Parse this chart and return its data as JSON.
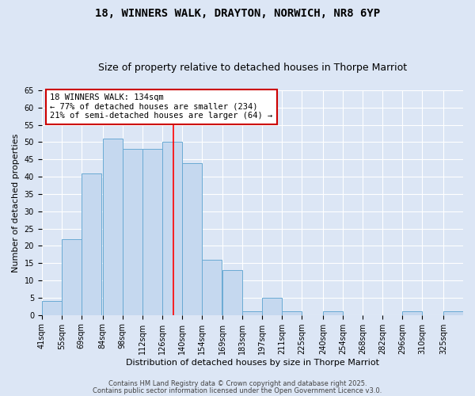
{
  "title": "18, WINNERS WALK, DRAYTON, NORWICH, NR8 6YP",
  "subtitle": "Size of property relative to detached houses in Thorpe Marriot",
  "xlabel": "Distribution of detached houses by size in Thorpe Marriot",
  "ylabel": "Number of detached properties",
  "bin_labels": [
    "41sqm",
    "55sqm",
    "69sqm",
    "84sqm",
    "98sqm",
    "112sqm",
    "126sqm",
    "140sqm",
    "154sqm",
    "169sqm",
    "183sqm",
    "197sqm",
    "211sqm",
    "225sqm",
    "240sqm",
    "254sqm",
    "268sqm",
    "282sqm",
    "296sqm",
    "310sqm",
    "325sqm"
  ],
  "bin_edges": [
    41,
    55,
    69,
    84,
    98,
    112,
    126,
    140,
    154,
    169,
    183,
    197,
    211,
    225,
    240,
    254,
    268,
    282,
    296,
    310,
    325
  ],
  "bin_width": 14,
  "bar_heights": [
    4,
    22,
    41,
    51,
    48,
    48,
    50,
    44,
    16,
    13,
    1,
    5,
    1,
    0,
    1,
    0,
    0,
    0,
    1,
    0,
    1
  ],
  "bar_color": "#c5d8ef",
  "bar_edge_color": "#6aaad4",
  "red_line_x": 134,
  "ylim": [
    0,
    65
  ],
  "yticks": [
    0,
    5,
    10,
    15,
    20,
    25,
    30,
    35,
    40,
    45,
    50,
    55,
    60,
    65
  ],
  "annotation_text": "18 WINNERS WALK: 134sqm\n← 77% of detached houses are smaller (234)\n21% of semi-detached houses are larger (64) →",
  "annotation_box_color": "#ffffff",
  "annotation_box_edge": "#cc0000",
  "footer_line1": "Contains HM Land Registry data © Crown copyright and database right 2025.",
  "footer_line2": "Contains public sector information licensed under the Open Government Licence v3.0.",
  "background_color": "#dce6f5",
  "plot_background": "#dce6f5",
  "title_fontsize": 10,
  "subtitle_fontsize": 9,
  "tick_fontsize": 7,
  "ylabel_fontsize": 8,
  "xlabel_fontsize": 8,
  "footer_fontsize": 6
}
